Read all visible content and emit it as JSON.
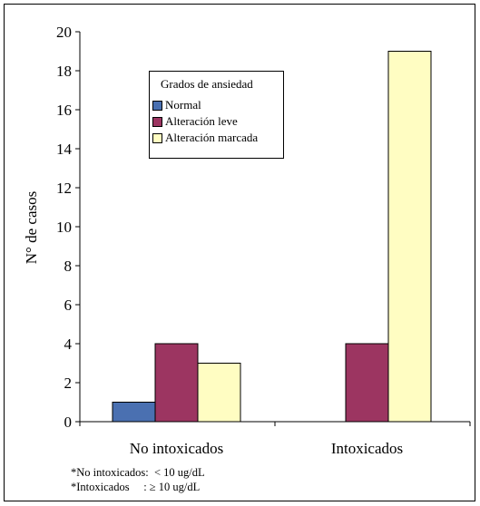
{
  "chart_data": {
    "type": "bar",
    "categories": [
      "No intoxicados",
      "Intoxicados"
    ],
    "series": [
      {
        "name": "Normal",
        "values": [
          1,
          0
        ],
        "color": "#4a70b1"
      },
      {
        "name": "Alteración leve",
        "values": [
          4,
          4
        ],
        "color": "#9c3561"
      },
      {
        "name": "Alteración marcada",
        "values": [
          3,
          19
        ],
        "color": "#fffdc2"
      }
    ],
    "ylabel": "N° de casos",
    "ylim": [
      0,
      20
    ],
    "yticks": [
      0,
      2,
      4,
      6,
      8,
      10,
      12,
      14,
      16,
      18,
      20
    ],
    "legend_title": "Grados de ansiedad",
    "legend_position": "top-left",
    "grid": false
  },
  "notes": [
    "*No intoxicados:  < 10 ug/dL",
    "*Intoxicados     : ≥ 10 ug/dL"
  ]
}
